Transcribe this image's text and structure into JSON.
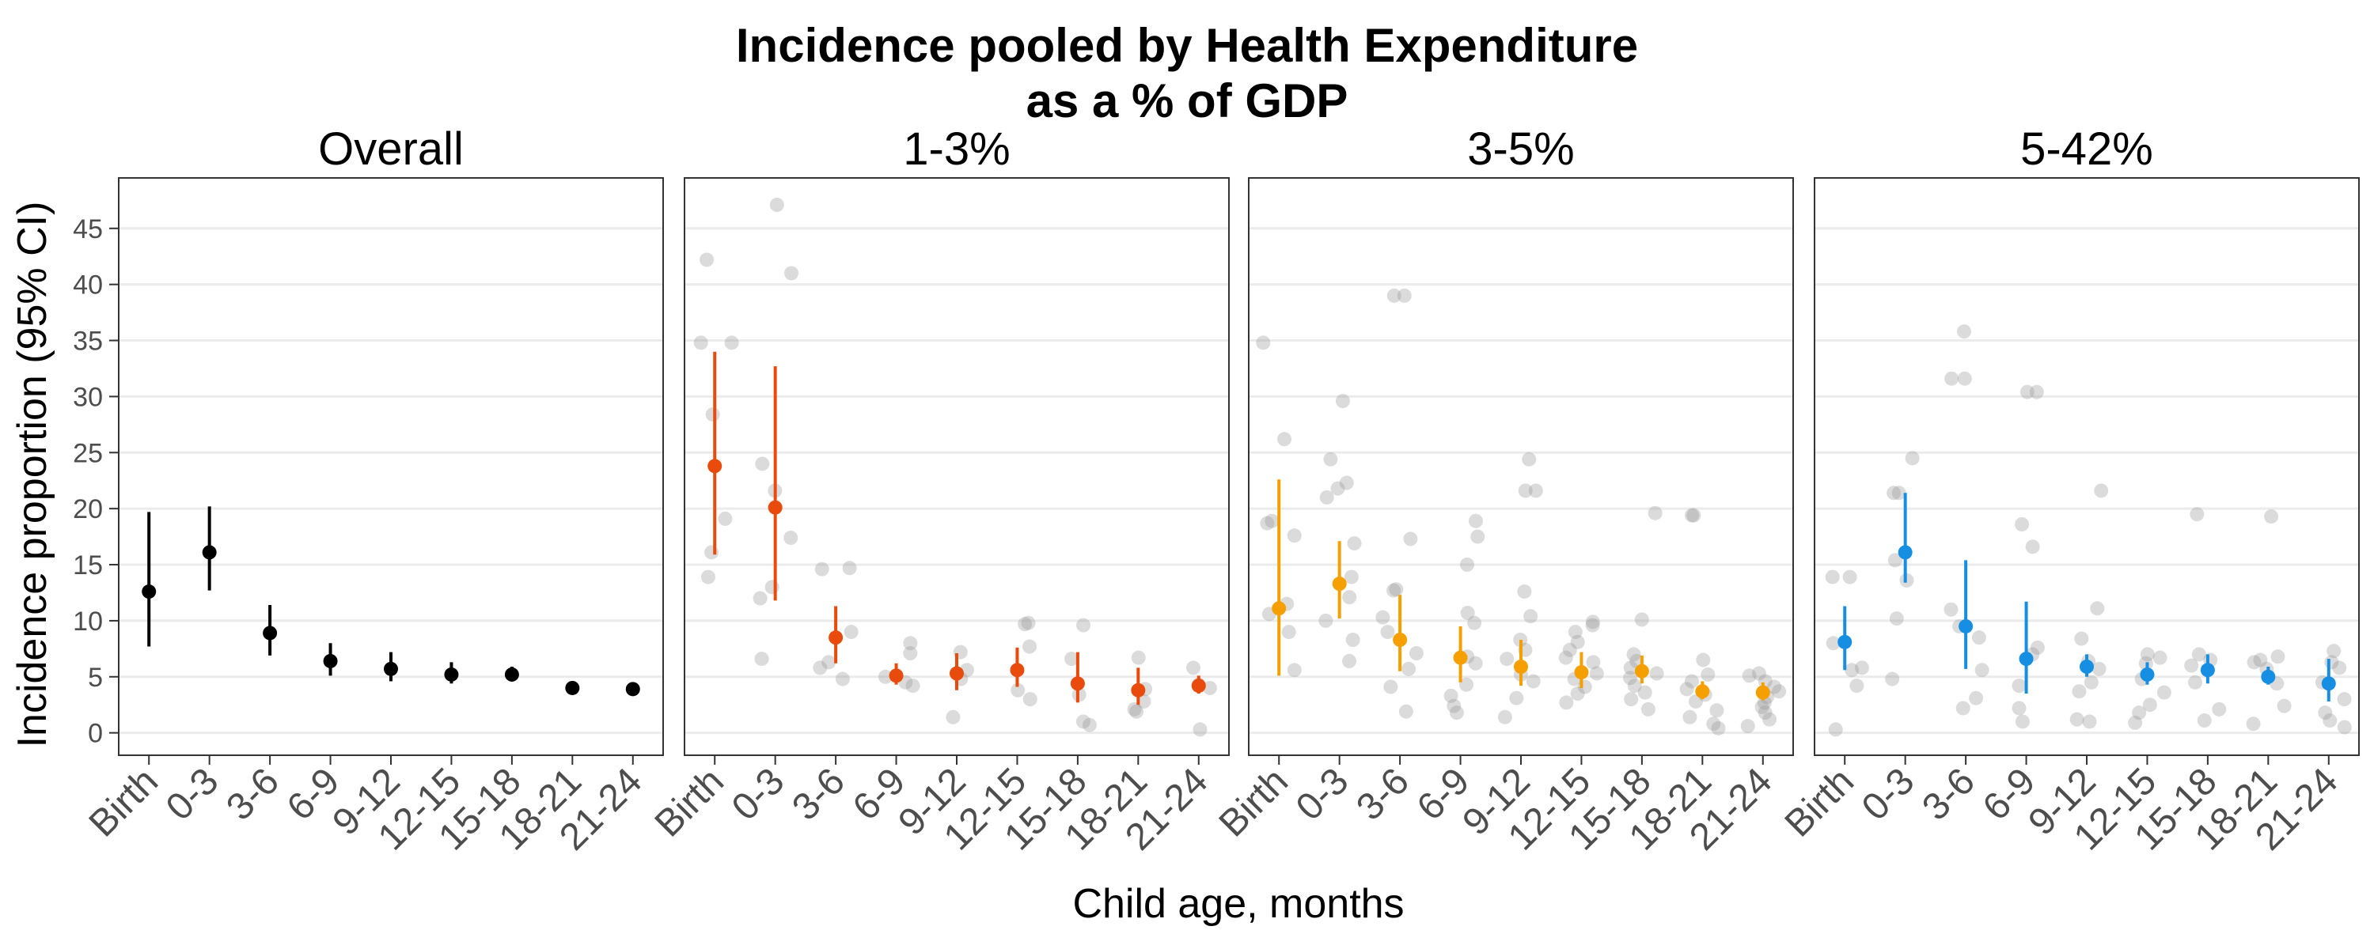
{
  "chart_data": {
    "type": "scatter",
    "title_line1": "Incidence pooled by Health Expenditure",
    "title_line2": "as a % of GDP",
    "xlabel": "Child age, months",
    "ylabel": "Incidence proportion (95% CI)",
    "categories": [
      "Birth",
      "0-3",
      "3-6",
      "6-9",
      "9-12",
      "12-15",
      "15-18",
      "18-21",
      "21-24"
    ],
    "y_ticks": [
      0,
      5,
      10,
      15,
      20,
      25,
      30,
      35,
      40,
      45
    ],
    "ylim": [
      -2,
      49.5
    ],
    "grid": true,
    "panels": [
      {
        "label": "Overall",
        "color": "#000000",
        "estimates": [
          12.6,
          16.1,
          8.9,
          6.4,
          5.7,
          5.2,
          5.2,
          4.0,
          3.9
        ],
        "ci_low": [
          7.7,
          12.7,
          6.9,
          5.1,
          4.6,
          4.4,
          4.6,
          3.6,
          3.4
        ],
        "ci_high": [
          19.7,
          20.2,
          11.4,
          8.0,
          7.2,
          6.3,
          5.9,
          4.5,
          4.5
        ],
        "points": [
          [],
          [],
          [],
          [],
          [],
          [],
          [],
          [],
          []
        ]
      },
      {
        "label": "1-3%",
        "color": "#E84B0C",
        "estimates": [
          23.8,
          20.1,
          8.5,
          5.1,
          5.3,
          5.6,
          4.4,
          3.8,
          4.2
        ],
        "ci_low": [
          15.9,
          11.8,
          6.2,
          4.3,
          3.8,
          4.1,
          2.7,
          2.5,
          3.5
        ],
        "ci_high": [
          34.0,
          32.7,
          11.3,
          6.2,
          7.1,
          7.6,
          7.2,
          5.8,
          5.1
        ],
        "points": [
          [
            42.2,
            34.8,
            34.8,
            28.4,
            19.1,
            16.1,
            13.9
          ],
          [
            47.1,
            41.0,
            24.0,
            21.6,
            17.4,
            13.0,
            12.0,
            6.6
          ],
          [
            14.7,
            14.6,
            9.0,
            6.3,
            5.8,
            4.8
          ],
          [
            8.0,
            7.1,
            5.0,
            4.5,
            4.2
          ],
          [
            7.2,
            5.6,
            4.8,
            1.4
          ],
          [
            9.8,
            9.7,
            7.7,
            3.8,
            3.0
          ],
          [
            9.6,
            6.6,
            3.4,
            1.0,
            0.7
          ],
          [
            6.7,
            3.9,
            2.8,
            2.1,
            1.9
          ],
          [
            5.8,
            4.3,
            4.0,
            0.3
          ]
        ]
      },
      {
        "label": "3-5%",
        "color": "#F5A000",
        "estimates": [
          11.1,
          13.3,
          8.3,
          6.7,
          5.9,
          5.4,
          5.5,
          3.7,
          3.6
        ],
        "ci_low": [
          5.1,
          10.2,
          5.5,
          4.5,
          4.2,
          4.0,
          4.4,
          3.0,
          2.9
        ],
        "ci_high": [
          22.6,
          17.1,
          12.3,
          9.5,
          8.3,
          7.2,
          6.9,
          4.6,
          4.5
        ],
        "points": [
          [
            34.8,
            26.2,
            18.9,
            18.7,
            17.6,
            11.5,
            10.6,
            9.0,
            5.6
          ],
          [
            29.6,
            24.4,
            22.3,
            21.8,
            21.0,
            16.9,
            13.9,
            12.1,
            10.0,
            8.3,
            6.4
          ],
          [
            39.0,
            39.0,
            17.3,
            12.8,
            12.7,
            10.3,
            9.0,
            7.1,
            5.7,
            4.1,
            1.9
          ],
          [
            18.9,
            17.5,
            15.0,
            10.7,
            9.8,
            6.8,
            6.2,
            4.3,
            3.3,
            2.4,
            1.8
          ],
          [
            24.4,
            21.6,
            21.6,
            12.6,
            10.4,
            8.3,
            7.4,
            6.6,
            5.2,
            4.6,
            3.1,
            1.4
          ],
          [
            9.9,
            9.6,
            9.0,
            8.1,
            7.4,
            6.7,
            6.3,
            5.3,
            4.8,
            4.1,
            3.5,
            2.7
          ],
          [
            19.6,
            10.1,
            7.0,
            6.4,
            5.8,
            5.3,
            4.9,
            4.2,
            3.6,
            3.0,
            2.1
          ],
          [
            19.4,
            19.4,
            6.5,
            5.2,
            4.6,
            3.9,
            3.4,
            2.8,
            2.0,
            1.4,
            0.8,
            0.4
          ],
          [
            5.3,
            5.1,
            4.6,
            4.1,
            3.7,
            3.2,
            2.7,
            2.3,
            1.8,
            1.2,
            0.6
          ]
        ]
      },
      {
        "label": "5-42%",
        "color": "#168FE3",
        "estimates": [
          8.1,
          16.1,
          9.5,
          6.6,
          5.9,
          5.2,
          5.6,
          5.0,
          4.4
        ],
        "ci_low": [
          5.6,
          13.4,
          5.7,
          3.5,
          5.0,
          4.3,
          4.4,
          4.3,
          2.8
        ],
        "ci_high": [
          11.3,
          21.4,
          15.4,
          11.7,
          7.0,
          6.3,
          7.0,
          5.9,
          6.6
        ],
        "points": [
          [
            13.9,
            13.9,
            8.0,
            5.8,
            5.6,
            4.2,
            0.3
          ],
          [
            24.5,
            21.4,
            21.4,
            15.4,
            13.6,
            10.2,
            4.8
          ],
          [
            35.8,
            31.6,
            31.6,
            11.0,
            9.5,
            8.5,
            5.6,
            3.1,
            2.2
          ],
          [
            30.4,
            30.4,
            18.6,
            16.6,
            7.6,
            7.0,
            4.2,
            2.2,
            1.0
          ],
          [
            21.6,
            11.1,
            8.4,
            6.4,
            5.7,
            4.5,
            3.7,
            1.2,
            1.0
          ],
          [
            7.0,
            6.7,
            6.2,
            4.8,
            3.6,
            2.5,
            1.8,
            0.9
          ],
          [
            19.5,
            7.0,
            6.5,
            6.0,
            4.5,
            2.1,
            1.1
          ],
          [
            19.3,
            6.8,
            6.5,
            6.3,
            5.7,
            4.4,
            2.4,
            0.8
          ],
          [
            7.3,
            6.3,
            5.8,
            4.5,
            3.0,
            1.8,
            1.1,
            0.5
          ]
        ]
      }
    ]
  }
}
